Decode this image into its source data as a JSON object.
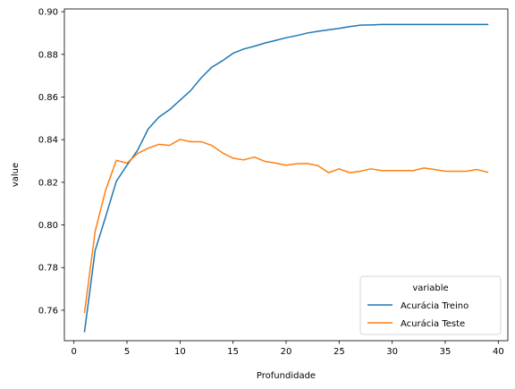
{
  "chart_data": {
    "type": "line",
    "xlabel": "Profundidade",
    "ylabel": "value",
    "xlim": [
      -0.9,
      40.9
    ],
    "ylim": [
      0.7457,
      0.9013
    ],
    "xticks": [
      0,
      5,
      10,
      15,
      20,
      25,
      30,
      35,
      40
    ],
    "yticks": [
      0.76,
      0.78,
      0.8,
      0.82,
      0.84,
      0.86,
      0.88,
      0.9
    ],
    "grid": false,
    "legend": {
      "placement": "lower-right",
      "title": "variable"
    },
    "x": [
      1,
      2,
      3,
      4,
      5,
      6,
      7,
      8,
      9,
      10,
      11,
      12,
      13,
      14,
      15,
      16,
      17,
      18,
      19,
      20,
      21,
      22,
      23,
      24,
      25,
      26,
      27,
      28,
      29,
      30,
      31,
      32,
      33,
      34,
      35,
      36,
      37,
      38,
      39
    ],
    "series": [
      {
        "name": "Acurácia Treino",
        "color": "#1f77b4",
        "values": [
          0.75,
          0.788,
          0.804,
          0.8205,
          0.828,
          0.835,
          0.845,
          0.8505,
          0.854,
          0.8585,
          0.863,
          0.869,
          0.874,
          0.877,
          0.8805,
          0.8825,
          0.8838,
          0.8853,
          0.8865,
          0.8878,
          0.8888,
          0.89,
          0.8908,
          0.8915,
          0.8922,
          0.893,
          0.8937,
          0.8938,
          0.894,
          0.894,
          0.894,
          0.894,
          0.894,
          0.894,
          0.894,
          0.894,
          0.894,
          0.894,
          0.894
        ]
      },
      {
        "name": "Acurácia Teste",
        "color": "#ff7f0e",
        "values": [
          0.759,
          0.797,
          0.8165,
          0.8303,
          0.829,
          0.8335,
          0.836,
          0.8378,
          0.8373,
          0.8401,
          0.839,
          0.839,
          0.8373,
          0.8338,
          0.8313,
          0.8305,
          0.8318,
          0.8298,
          0.829,
          0.828,
          0.8287,
          0.8288,
          0.8278,
          0.8245,
          0.8263,
          0.8245,
          0.8252,
          0.8263,
          0.8255,
          0.8255,
          0.8255,
          0.8255,
          0.8267,
          0.826,
          0.8252,
          0.8252,
          0.8252,
          0.826,
          0.8247
        ]
      }
    ]
  }
}
